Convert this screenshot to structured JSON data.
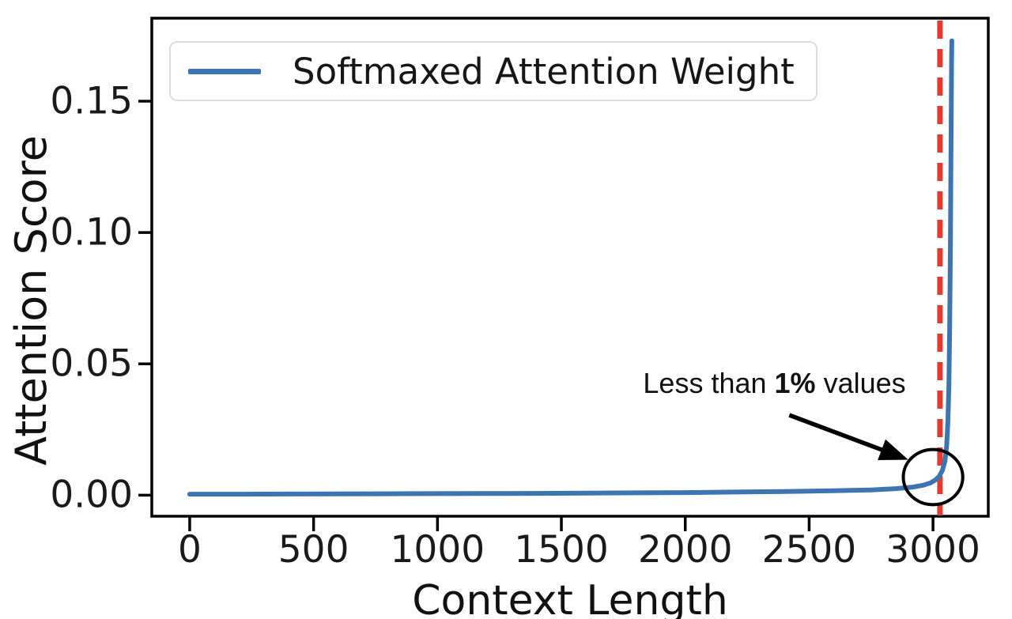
{
  "figure": {
    "background": "#ffffff",
    "axis_color": "#000000",
    "text_color": "#1a1a1a"
  },
  "legend": {
    "label": "Softmaxed Attention Weight",
    "line_color": "#3c75b1"
  },
  "chart_data": {
    "type": "line",
    "title": "",
    "xlabel": "Context Length",
    "ylabel": "Attention Score",
    "xlim": [
      -153,
      3223
    ],
    "ylim": [
      -0.008,
      0.1816
    ],
    "grid": false,
    "legend_position": "upper left",
    "xticks": {
      "values": [
        0,
        500,
        1000,
        1500,
        2000,
        2500,
        3000
      ],
      "labels": [
        "0",
        "500",
        "1000",
        "1500",
        "2000",
        "2500",
        "3000"
      ]
    },
    "yticks": {
      "values": [
        0,
        0.05,
        0.1,
        0.15
      ],
      "labels": [
        "0.00",
        "0.05",
        "0.10",
        "0.15"
      ]
    },
    "series": [
      {
        "name": "Softmaxed Attention Weight",
        "color": "#3c75b1",
        "line_width": 6,
        "points": [
          [
            0,
            0.0004
          ],
          [
            200,
            0.0004
          ],
          [
            400,
            0.00045
          ],
          [
            600,
            0.0005
          ],
          [
            800,
            0.00055
          ],
          [
            1000,
            0.0006
          ],
          [
            1200,
            0.00065
          ],
          [
            1400,
            0.0007
          ],
          [
            1600,
            0.0008
          ],
          [
            1800,
            0.0009
          ],
          [
            2000,
            0.001
          ],
          [
            2200,
            0.0012
          ],
          [
            2400,
            0.0014
          ],
          [
            2600,
            0.0017
          ],
          [
            2750,
            0.002
          ],
          [
            2850,
            0.0025
          ],
          [
            2920,
            0.0031
          ],
          [
            2960,
            0.0038
          ],
          [
            2990,
            0.0047
          ],
          [
            3010,
            0.0058
          ],
          [
            3025,
            0.0072
          ],
          [
            3038,
            0.0095
          ],
          [
            3048,
            0.013
          ],
          [
            3055,
            0.019
          ],
          [
            3060,
            0.028
          ],
          [
            3064,
            0.042
          ],
          [
            3067,
            0.062
          ],
          [
            3070,
            0.095
          ],
          [
            3072,
            0.125
          ],
          [
            3074,
            0.152
          ],
          [
            3075,
            0.166
          ],
          [
            3076,
            0.173
          ]
        ],
        "peak": {
          "x": 3076,
          "y": 0.173
        }
      }
    ],
    "vline": {
      "x": 3028,
      "color": "#e8392e",
      "style": "dashed",
      "width": 7
    },
    "annotation": {
      "text_prefix": "Less than ",
      "text_bold": "1%",
      "text_suffix": " values",
      "text_center": [
        2360,
        0.0425
      ],
      "arrow_from": [
        2420,
        0.0305
      ],
      "arrow_to": [
        2900,
        0.0135
      ],
      "ellipse": {
        "cx": 3000,
        "cy": 0.0069,
        "rx": 120,
        "ry": 0.0105
      },
      "color": "#000000"
    }
  }
}
